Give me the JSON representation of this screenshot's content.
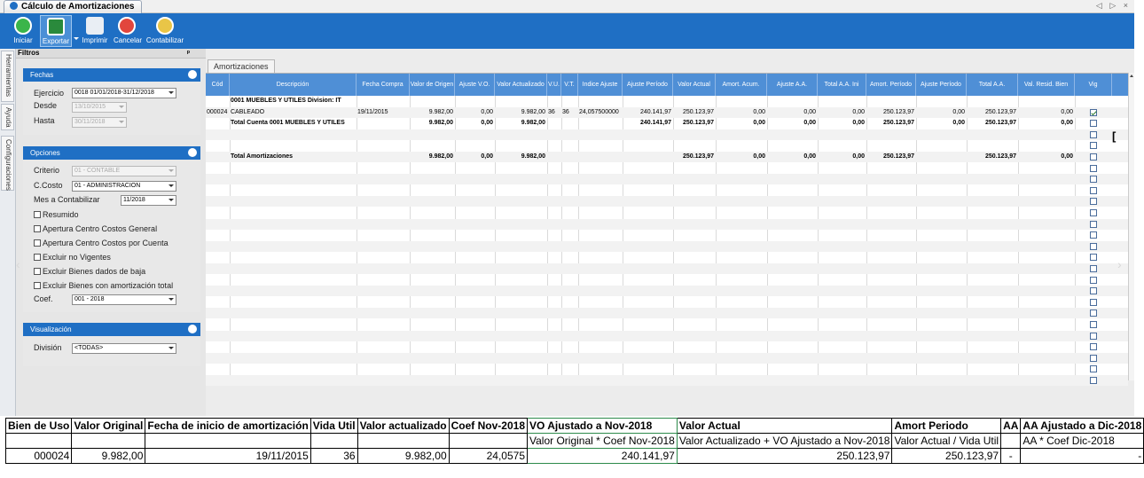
{
  "window": {
    "tab_title": "Cálculo de Amortizaciones",
    "nav_arrows": "◁ ▷ ×"
  },
  "toolbar": [
    {
      "label": "Iniciar",
      "icon": "play-icon"
    },
    {
      "label": "Exportar",
      "icon": "export-icon"
    },
    {
      "label": "Imprimir",
      "icon": "print-icon"
    },
    {
      "label": "Cancelar",
      "icon": "cancel-icon"
    },
    {
      "label": "Contabilizar",
      "icon": "accounting-icon"
    }
  ],
  "side_tabs": [
    "Herramientas",
    "Ayuda",
    "Configuraciones"
  ],
  "filtros": {
    "title": "Filtros",
    "fechas": {
      "title": "Fechas",
      "ejercicio_label": "Ejercicio",
      "ejercicio_value": "0018 01/01/2018-31/12/2018",
      "desde_label": "Desde",
      "desde_value": "13/10/2015",
      "hasta_label": "Hasta",
      "hasta_value": "30/11/2018"
    },
    "opciones": {
      "title": "Opciones",
      "criterio_label": "Criterio",
      "criterio_value": "01 - CONTABLE",
      "ccosto_label": "C.Costo",
      "ccosto_value": "01 - ADMINISTRACION",
      "mes_label": "Mes a Contabilizar",
      "mes_value": "11/2018",
      "checks": [
        "Resumido",
        "Apertura Centro Costos General",
        "Apertura Centro Costos por Cuenta",
        "Excluir no Vigentes",
        "Excluir Bienes dados de baja",
        "Excluir Bienes con amortización total"
      ],
      "coef_label": "Coef.",
      "coef_value": "001 - 2018"
    },
    "visualizacion": {
      "title": "Visualización",
      "division_label": "División",
      "division_value": "<TODAS>"
    }
  },
  "grid": {
    "tab_label": "Amortizaciones",
    "headers": [
      "Cód",
      "Descripción",
      "Fecha Compra",
      "Valor de Origen",
      "Ajuste V.O.",
      "Valor Actualizado",
      "V.U.",
      "V.T.",
      "Indice Ajuste",
      "Ajuste Período",
      "Valor Actual",
      "Amort. Acum.",
      "Ajuste A.A.",
      "Total A.A. Ini",
      "Amort. Período",
      "Ajuste Período",
      "Total A.A.",
      "Val. Resid. Bien",
      "Vig"
    ],
    "rows": [
      [
        "",
        "0001 MUEBLES Y UTILES Division: IT",
        "",
        "",
        "",
        "",
        "",
        "",
        "",
        "",
        "",
        "",
        "",
        "",
        "",
        "",
        "",
        "",
        ""
      ],
      [
        "000024",
        "CABLEADO",
        "19/11/2015",
        "9.982,00",
        "0,00",
        "9.982,00",
        "36",
        "36",
        "24,057500000",
        "240.141,97",
        "250.123,97",
        "0,00",
        "0,00",
        "0,00",
        "250.123,97",
        "0,00",
        "250.123,97",
        "0,00",
        "on"
      ],
      [
        "",
        "Total Cuenta 0001 MUEBLES Y UTILES",
        "",
        "9.982,00",
        "0,00",
        "9.982,00",
        "",
        "",
        "",
        "240.141,97",
        "250.123,97",
        "0,00",
        "0,00",
        "0,00",
        "250.123,97",
        "0,00",
        "250.123,97",
        "0,00",
        "off"
      ],
      [
        "",
        "",
        "",
        "",
        "",
        "",
        "",
        "",
        "",
        "",
        "",
        "",
        "",
        "",
        "",
        "",
        "",
        "",
        "off"
      ],
      [
        "",
        "",
        "",
        "",
        "",
        "",
        "",
        "",
        "",
        "",
        "",
        "",
        "",
        "",
        "",
        "",
        "",
        "",
        "off"
      ],
      [
        "",
        "Total Amortizaciones",
        "",
        "9.982,00",
        "0,00",
        "9.982,00",
        "",
        "",
        "",
        "",
        "250.123,97",
        "0,00",
        "0,00",
        "0,00",
        "250.123,97",
        "",
        "250.123,97",
        "0,00",
        "off"
      ]
    ]
  },
  "summary": {
    "headers": [
      "Bien de Uso",
      "Valor Original",
      "Fecha de inicio de amortización",
      "Vida Util",
      "Valor actualizado",
      "Coef Nov-2018",
      "VO Ajustado a Nov-2018",
      "Valor Actual",
      "Amort Periodo",
      "AA",
      "AA Ajustado a Dic-2018"
    ],
    "formulas": {
      "vo_ajustado": "Valor Original * Coef Nov-2018",
      "valor_actual": "Valor Actualizado + VO Ajustado a Nov-2018",
      "amort_periodo": "Valor Actual / Vida Util",
      "aa_ajustado": "AA * Coef Dic-2018"
    },
    "values": [
      "000024",
      "9.982,00",
      "19/11/2015",
      "36",
      "9.982,00",
      "24,0575",
      "240.141,97",
      "250.123,97",
      "250.123,97",
      "-",
      "-"
    ]
  }
}
